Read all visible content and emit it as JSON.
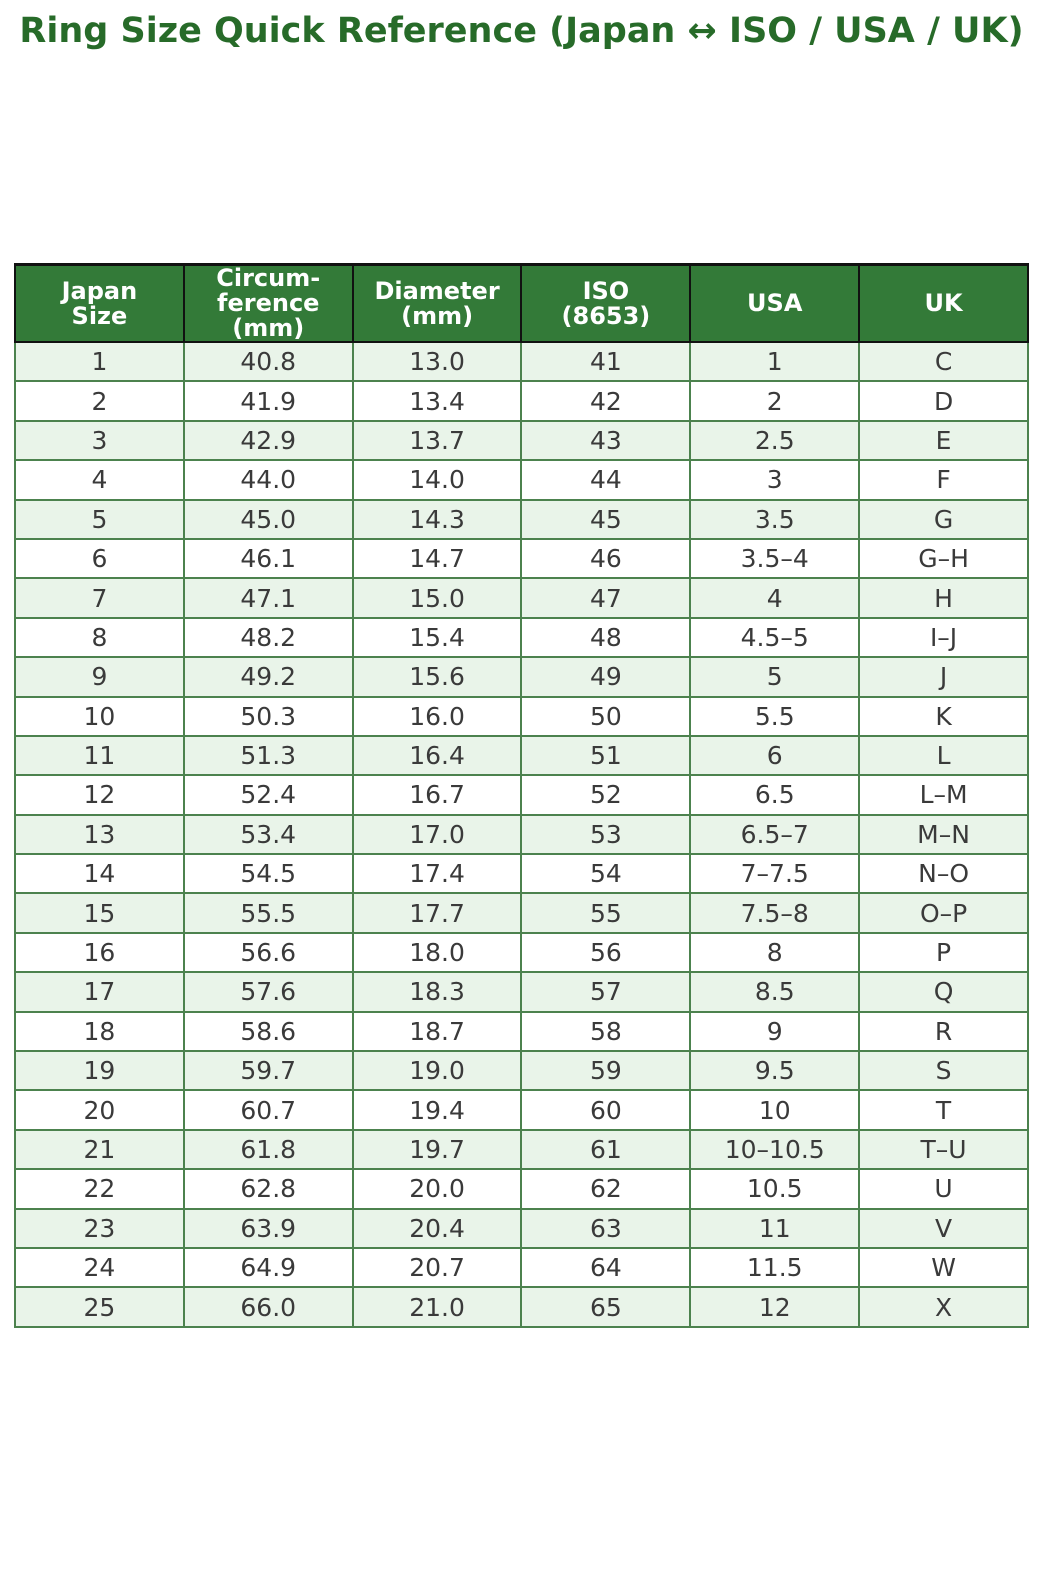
{
  "title": "Ring Size Quick Reference (Japan ↔ ISO / USA / UK)",
  "colors": {
    "title_green": "#276b29",
    "header_bg": "#337a38",
    "header_text": "#ffffff",
    "header_border": "#111111",
    "row_alt_bg": "#e9f4e9",
    "row_bg": "#ffffff",
    "body_border": "#4c824e",
    "body_text": "#3a3a3a"
  },
  "chart_data": {
    "type": "table",
    "title": "Ring Size Quick Reference (Japan ↔ ISO / USA / UK)",
    "columns": [
      "Japan\nSize",
      "Circum-\nference\n(mm)",
      "Diameter\n(mm)",
      "ISO\n(8653)",
      "USA",
      "UK"
    ],
    "column_keys": [
      "japan-size",
      "circumference-mm",
      "diameter-mm",
      "iso-8653",
      "usa",
      "uk"
    ],
    "rows": [
      [
        "1",
        "40.8",
        "13.0",
        "41",
        "1",
        "C"
      ],
      [
        "2",
        "41.9",
        "13.4",
        "42",
        "2",
        "D"
      ],
      [
        "3",
        "42.9",
        "13.7",
        "43",
        "2.5",
        "E"
      ],
      [
        "4",
        "44.0",
        "14.0",
        "44",
        "3",
        "F"
      ],
      [
        "5",
        "45.0",
        "14.3",
        "45",
        "3.5",
        "G"
      ],
      [
        "6",
        "46.1",
        "14.7",
        "46",
        "3.5–4",
        "G–H"
      ],
      [
        "7",
        "47.1",
        "15.0",
        "47",
        "4",
        "H"
      ],
      [
        "8",
        "48.2",
        "15.4",
        "48",
        "4.5–5",
        "I–J"
      ],
      [
        "9",
        "49.2",
        "15.6",
        "49",
        "5",
        "J"
      ],
      [
        "10",
        "50.3",
        "16.0",
        "50",
        "5.5",
        "K"
      ],
      [
        "11",
        "51.3",
        "16.4",
        "51",
        "6",
        "L"
      ],
      [
        "12",
        "52.4",
        "16.7",
        "52",
        "6.5",
        "L–M"
      ],
      [
        "13",
        "53.4",
        "17.0",
        "53",
        "6.5–7",
        "M–N"
      ],
      [
        "14",
        "54.5",
        "17.4",
        "54",
        "7–7.5",
        "N–O"
      ],
      [
        "15",
        "55.5",
        "17.7",
        "55",
        "7.5–8",
        "O–P"
      ],
      [
        "16",
        "56.6",
        "18.0",
        "56",
        "8",
        "P"
      ],
      [
        "17",
        "57.6",
        "18.3",
        "57",
        "8.5",
        "Q"
      ],
      [
        "18",
        "58.6",
        "18.7",
        "58",
        "9",
        "R"
      ],
      [
        "19",
        "59.7",
        "19.0",
        "59",
        "9.5",
        "S"
      ],
      [
        "20",
        "60.7",
        "19.4",
        "60",
        "10",
        "T"
      ],
      [
        "21",
        "61.8",
        "19.7",
        "61",
        "10–10.5",
        "T–U"
      ],
      [
        "22",
        "62.8",
        "20.0",
        "62",
        "10.5",
        "U"
      ],
      [
        "23",
        "63.9",
        "20.4",
        "63",
        "11",
        "V"
      ],
      [
        "24",
        "64.9",
        "20.7",
        "64",
        "11.5",
        "W"
      ],
      [
        "25",
        "66.0",
        "21.0",
        "65",
        "12",
        "X"
      ]
    ],
    "layout": {
      "grid": true,
      "alternating_rows": true,
      "first_body_row_shaded": true,
      "header_position": "top"
    }
  }
}
